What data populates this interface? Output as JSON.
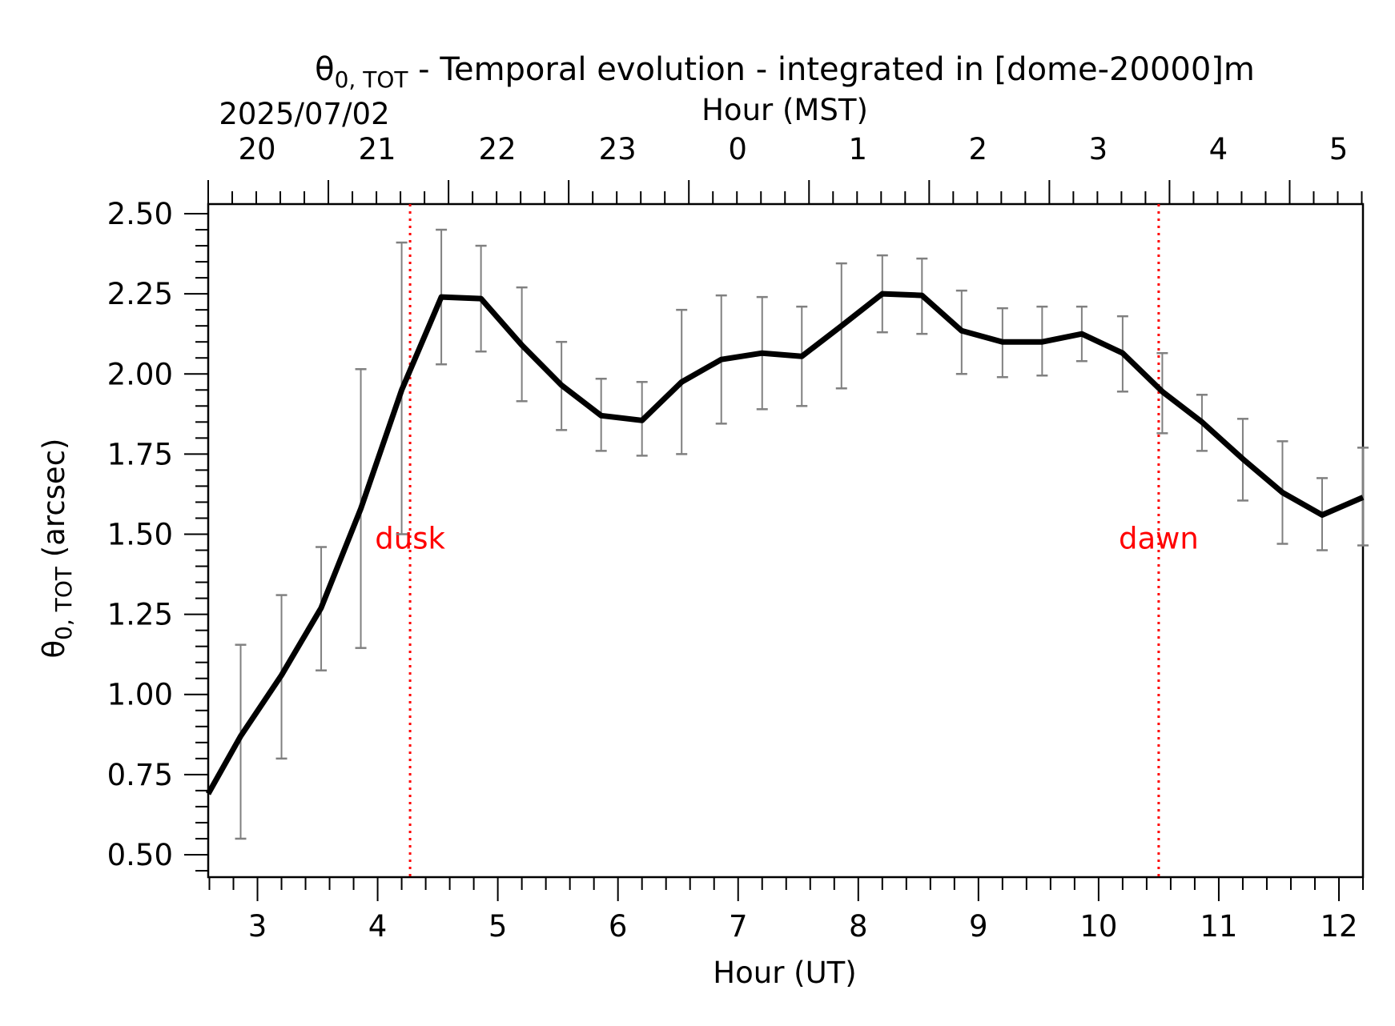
{
  "chart_data": {
    "type": "line",
    "title": {
      "prefix": "θ",
      "sub": "0, TOT",
      "rest": " - Temporal evolution - integrated in [dome-20000]m"
    },
    "date_label": "2025/07/02",
    "xlabel": "Hour (UT)",
    "x2label": "Hour (MST)",
    "ylabel": {
      "prefix": "θ",
      "sub": "0, TOT",
      "rest": " (arcsec)"
    },
    "xlim": [
      2.59,
      12.2
    ],
    "ylim": [
      0.43,
      2.53
    ],
    "x_ticks": [
      3,
      4,
      5,
      6,
      7,
      8,
      9,
      10,
      11,
      12
    ],
    "x_tick_labels": [
      "3",
      "4",
      "5",
      "6",
      "7",
      "8",
      "9",
      "10",
      "11",
      "12"
    ],
    "x2_ticks": [
      2.59,
      3.59,
      4.59,
      5.59,
      6.59,
      7.59,
      8.59,
      9.59,
      10.59,
      11.59
    ],
    "x2_tick_labels": [
      "20",
      "21",
      "22",
      "23",
      "0",
      "1",
      "2",
      "3",
      "4",
      "5"
    ],
    "y_ticks": [
      0.5,
      0.75,
      1.0,
      1.25,
      1.5,
      1.75,
      2.0,
      2.25,
      2.5
    ],
    "y_tick_labels": [
      "0.50",
      "0.75",
      "1.00",
      "1.25",
      "1.50",
      "1.75",
      "2.00",
      "2.25",
      "2.50"
    ],
    "series": [
      {
        "x": [
          2.59,
          2.86,
          3.2,
          3.53,
          3.86,
          4.2,
          4.53,
          4.86,
          5.2,
          5.53,
          5.86,
          6.2,
          6.53,
          6.86,
          7.2,
          7.53,
          7.86,
          8.2,
          8.53,
          8.86,
          9.2,
          9.53,
          9.86,
          10.2,
          10.53,
          10.86,
          11.2,
          11.53,
          11.86,
          12.2
        ],
        "y": [
          0.69,
          0.87,
          1.06,
          1.27,
          1.58,
          1.95,
          2.24,
          2.235,
          2.09,
          1.965,
          1.87,
          1.855,
          1.975,
          2.045,
          2.065,
          2.055,
          2.15,
          2.25,
          2.245,
          2.135,
          2.1,
          2.1,
          2.125,
          2.065,
          1.945,
          1.85,
          1.735,
          1.63,
          1.56,
          1.615
        ],
        "color": "#000000"
      }
    ],
    "error_bars": {
      "x": [
        2.86,
        3.2,
        3.53,
        3.86,
        4.2,
        4.53,
        4.86,
        5.2,
        5.53,
        5.86,
        6.2,
        6.53,
        6.86,
        7.2,
        7.53,
        7.86,
        8.2,
        8.53,
        8.86,
        9.2,
        9.53,
        9.86,
        10.2,
        10.53,
        10.86,
        11.2,
        11.53,
        11.86,
        12.2
      ],
      "low": [
        0.55,
        0.8,
        1.075,
        1.145,
        1.5,
        2.03,
        2.07,
        1.915,
        1.825,
        1.76,
        1.745,
        1.75,
        1.845,
        1.89,
        1.9,
        1.955,
        2.13,
        2.125,
        2.0,
        1.99,
        1.995,
        2.04,
        1.945,
        1.815,
        1.76,
        1.605,
        1.47,
        1.45,
        1.465
      ],
      "high": [
        1.155,
        1.31,
        1.46,
        2.015,
        2.41,
        2.45,
        2.4,
        2.27,
        2.1,
        1.985,
        1.975,
        2.2,
        2.245,
        2.24,
        2.21,
        2.345,
        2.37,
        2.36,
        2.26,
        2.205,
        2.21,
        2.21,
        2.18,
        2.065,
        1.935,
        1.86,
        1.79,
        1.675,
        1.77
      ],
      "color": "#808080"
    },
    "annotations": [
      {
        "label": "dusk",
        "x": 4.27,
        "y_text": 1.455,
        "color": "#ff0000"
      },
      {
        "label": "dawn",
        "x": 10.5,
        "y_text": 1.455,
        "color": "#ff0000"
      }
    ],
    "grid": false,
    "legend": "none"
  }
}
